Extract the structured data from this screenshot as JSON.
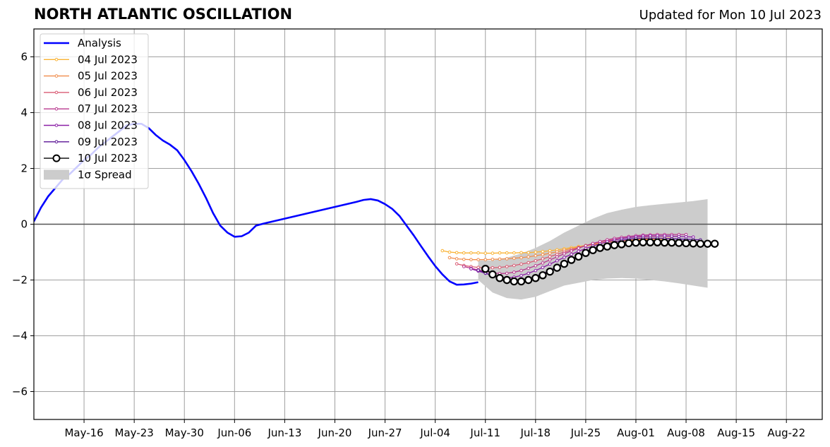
{
  "header": {
    "title": "NORTH ATLANTIC OSCILLATION",
    "updated": "Updated for Mon 10 Jul 2023"
  },
  "chart_data": {
    "type": "line",
    "title": "NORTH ATLANTIC OSCILLATION",
    "subtitle": "Updated for Mon 10 Jul 2023",
    "xlabel": "",
    "ylabel": "",
    "xlim": [
      "2023-05-09",
      "2023-08-27"
    ],
    "ylim": [
      -7,
      7
    ],
    "x_tick_labels": [
      {
        "date": "2023-05-16",
        "label": "May-16"
      },
      {
        "date": "2023-05-23",
        "label": "May-23"
      },
      {
        "date": "2023-05-30",
        "label": "May-30"
      },
      {
        "date": "2023-06-06",
        "label": "Jun-06"
      },
      {
        "date": "2023-06-13",
        "label": "Jun-13"
      },
      {
        "date": "2023-06-20",
        "label": "Jun-20"
      },
      {
        "date": "2023-06-27",
        "label": "Jun-27"
      },
      {
        "date": "2023-07-04",
        "label": "Jul-04"
      },
      {
        "date": "2023-07-11",
        "label": "Jul-11"
      },
      {
        "date": "2023-07-18",
        "label": "Jul-18"
      },
      {
        "date": "2023-07-25",
        "label": "Jul-25"
      },
      {
        "date": "2023-08-01",
        "label": "Aug-01"
      },
      {
        "date": "2023-08-08",
        "label": "Aug-08"
      },
      {
        "date": "2023-08-15",
        "label": "Aug-15"
      },
      {
        "date": "2023-08-22",
        "label": "Aug-22"
      }
    ],
    "y_ticks": [
      {
        "value": 6,
        "label": "6"
      },
      {
        "value": 4,
        "label": "4"
      },
      {
        "value": 2,
        "label": "2"
      },
      {
        "value": 0,
        "label": "0"
      },
      {
        "value": -2,
        "label": "−2"
      },
      {
        "value": -4,
        "label": "−4"
      },
      {
        "value": -6,
        "label": "−6"
      }
    ],
    "grid": true,
    "legend_position": "top-left",
    "zero_line": true,
    "analysis": {
      "name": "Analysis",
      "color": "#0000ff",
      "x": [
        "2023-05-09",
        "2023-05-10",
        "2023-05-11",
        "2023-05-12",
        "2023-05-13",
        "2023-05-14",
        "2023-05-15",
        "2023-05-16",
        "2023-05-17",
        "2023-05-18",
        "2023-05-19",
        "2023-05-20",
        "2023-05-21",
        "2023-05-22",
        "2023-05-23",
        "2023-05-24",
        "2023-05-25",
        "2023-05-26",
        "2023-05-27",
        "2023-05-28",
        "2023-05-29",
        "2023-05-30",
        "2023-05-31",
        "2023-06-01",
        "2023-06-02",
        "2023-06-03",
        "2023-06-04",
        "2023-06-05",
        "2023-06-06",
        "2023-06-07",
        "2023-06-08",
        "2023-06-09",
        "2023-06-10",
        "2023-06-11",
        "2023-06-12",
        "2023-06-13",
        "2023-06-14",
        "2023-06-15",
        "2023-06-16",
        "2023-06-17",
        "2023-06-18",
        "2023-06-19",
        "2023-06-20",
        "2023-06-21",
        "2023-06-22",
        "2023-06-23",
        "2023-06-24",
        "2023-06-25",
        "2023-06-26",
        "2023-06-27",
        "2023-06-28",
        "2023-06-29",
        "2023-06-30",
        "2023-07-01",
        "2023-07-02",
        "2023-07-03",
        "2023-07-04",
        "2023-07-05",
        "2023-07-06",
        "2023-07-07",
        "2023-07-08",
        "2023-07-09",
        "2023-07-10"
      ],
      "y": [
        0.1,
        0.6,
        1.0,
        1.3,
        1.6,
        1.8,
        2.05,
        2.3,
        2.5,
        2.75,
        2.95,
        3.15,
        3.35,
        3.55,
        3.6,
        3.6,
        3.45,
        3.2,
        3.0,
        2.85,
        2.65,
        2.3,
        1.9,
        1.45,
        0.95,
        0.4,
        -0.05,
        -0.3,
        -0.45,
        -0.43,
        -0.3,
        -0.05,
        0.02,
        0.08,
        0.14,
        0.2,
        0.26,
        0.32,
        0.38,
        0.44,
        0.5,
        0.56,
        0.62,
        0.68,
        0.74,
        0.8,
        0.87,
        0.9,
        0.85,
        0.72,
        0.55,
        0.3,
        -0.05,
        -0.4,
        -0.78,
        -1.15,
        -1.5,
        -1.8,
        -2.05,
        -2.17,
        -2.16,
        -2.13,
        -2.08
      ]
    },
    "spread": {
      "name": "1σ Spread",
      "color": "#cccccc",
      "x": [
        "2023-07-10",
        "2023-07-12",
        "2023-07-14",
        "2023-07-16",
        "2023-07-18",
        "2023-07-20",
        "2023-07-22",
        "2023-07-24",
        "2023-07-26",
        "2023-07-28",
        "2023-07-30",
        "2023-08-01",
        "2023-08-03",
        "2023-08-05",
        "2023-08-07",
        "2023-08-09",
        "2023-08-11"
      ],
      "upper": [
        -1.3,
        -1.3,
        -1.2,
        -1.05,
        -0.85,
        -0.6,
        -0.3,
        -0.05,
        0.2,
        0.4,
        0.52,
        0.62,
        0.68,
        0.73,
        0.78,
        0.83,
        0.9
      ],
      "lower": [
        -2.0,
        -2.45,
        -2.65,
        -2.7,
        -2.6,
        -2.4,
        -2.2,
        -2.1,
        -2.0,
        -1.95,
        -1.93,
        -1.95,
        -2.0,
        -2.05,
        -2.12,
        -2.2,
        -2.28
      ]
    },
    "series": [
      {
        "name": "04 Jul 2023",
        "color": "#f9b233",
        "start": "2023-07-05",
        "y": [
          -0.95,
          -1.0,
          -1.02,
          -1.03,
          -1.03,
          -1.03,
          -1.04,
          -1.04,
          -1.03,
          -1.03,
          -1.03,
          -1.02,
          -1.02,
          -1.0,
          -0.98,
          -0.95,
          -0.92,
          -0.88,
          -0.84,
          -0.8,
          -0.76,
          -0.72,
          -0.68,
          -0.65,
          -0.62,
          -0.6,
          -0.58,
          -0.57,
          -0.56,
          -0.56,
          -0.55,
          -0.55
        ]
      },
      {
        "name": "05 Jul 2023",
        "color": "#f08c4b",
        "start": "2023-07-06",
        "y": [
          -1.2,
          -1.24,
          -1.26,
          -1.27,
          -1.27,
          -1.27,
          -1.26,
          -1.25,
          -1.24,
          -1.22,
          -1.2,
          -1.17,
          -1.13,
          -1.09,
          -1.04,
          -0.99,
          -0.93,
          -0.88,
          -0.83,
          -0.78,
          -0.73,
          -0.69,
          -0.65,
          -0.62,
          -0.59,
          -0.57,
          -0.55,
          -0.53,
          -0.52,
          -0.51,
          -0.5,
          -0.5
        ]
      },
      {
        "name": "06 Jul 2023",
        "color": "#d95a73",
        "start": "2023-07-07",
        "y": [
          -1.42,
          -1.48,
          -1.52,
          -1.55,
          -1.56,
          -1.56,
          -1.55,
          -1.52,
          -1.48,
          -1.43,
          -1.38,
          -1.31,
          -1.24,
          -1.16,
          -1.08,
          -1.0,
          -0.92,
          -0.84,
          -0.77,
          -0.7,
          -0.64,
          -0.59,
          -0.55,
          -0.51,
          -0.48,
          -0.46,
          -0.45,
          -0.44,
          -0.43,
          -0.43,
          -0.43,
          -0.43
        ]
      },
      {
        "name": "07 Jul 2023",
        "color": "#b8388f",
        "start": "2023-07-08",
        "y": [
          -1.52,
          -1.58,
          -1.64,
          -1.7,
          -1.74,
          -1.77,
          -1.76,
          -1.72,
          -1.66,
          -1.58,
          -1.49,
          -1.39,
          -1.28,
          -1.17,
          -1.06,
          -0.96,
          -0.86,
          -0.77,
          -0.69,
          -0.62,
          -0.56,
          -0.51,
          -0.47,
          -0.44,
          -0.41,
          -0.39,
          -0.38,
          -0.37,
          -0.37,
          -0.37,
          -0.37,
          -0.37
        ]
      },
      {
        "name": "08 Jul 2023",
        "color": "#8a1fa6",
        "start": "2023-07-09",
        "y": [
          -1.6,
          -1.68,
          -1.76,
          -1.84,
          -1.9,
          -1.92,
          -1.9,
          -1.84,
          -1.76,
          -1.66,
          -1.55,
          -1.43,
          -1.31,
          -1.19,
          -1.08,
          -0.97,
          -0.87,
          -0.78,
          -0.7,
          -0.63,
          -0.57,
          -0.52,
          -0.48,
          -0.45,
          -0.43,
          -0.42,
          -0.42,
          -0.42,
          -0.43,
          -0.44,
          -0.45,
          -0.46
        ]
      },
      {
        "name": "09 Jul 2023",
        "color": "#5a1394",
        "start": "2023-07-10",
        "y": [
          -1.65,
          -1.75,
          -1.85,
          -1.95,
          -2.02,
          -2.05,
          -2.03,
          -1.97,
          -1.88,
          -1.77,
          -1.65,
          -1.52,
          -1.39,
          -1.26,
          -1.13,
          -1.01,
          -0.9,
          -0.8,
          -0.71,
          -0.64,
          -0.58,
          -0.54,
          -0.51,
          -0.5,
          -0.5,
          -0.5,
          -0.51,
          -0.52,
          -0.53,
          -0.54,
          -0.55,
          -0.56
        ]
      },
      {
        "name": "10 Jul 2023",
        "color": "#000000",
        "marker": "open-circle",
        "start": "2023-07-11",
        "y": [
          -1.6,
          -1.8,
          -1.93,
          -2.0,
          -2.05,
          -2.05,
          -2.0,
          -1.93,
          -1.83,
          -1.7,
          -1.56,
          -1.42,
          -1.28,
          -1.16,
          -1.03,
          -0.93,
          -0.85,
          -0.8,
          -0.75,
          -0.72,
          -0.68,
          -0.66,
          -0.65,
          -0.65,
          -0.65,
          -0.66,
          -0.66,
          -0.67,
          -0.68,
          -0.69,
          -0.7,
          -0.7,
          -0.7
        ]
      }
    ]
  }
}
